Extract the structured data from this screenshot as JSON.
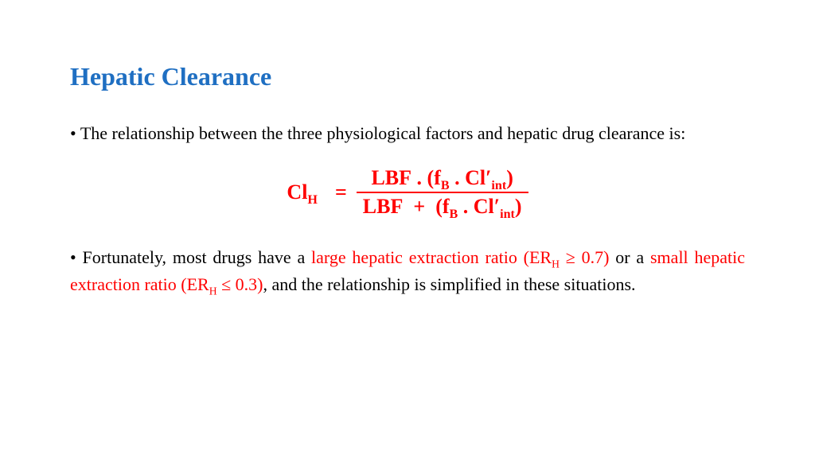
{
  "title": {
    "text": "Hepatic Clearance",
    "color": "#1f6fc2",
    "fontsize_pt": 24,
    "weight": "bold"
  },
  "body_text_color": "#000000",
  "highlight_color": "#ff0000",
  "background_color": "#ffffff",
  "font_family": "Times New Roman",
  "body_fontsize_pt": 16,
  "paragraph1": {
    "bullet": "•",
    "text": "The relationship between the three physiological factors and hepatic drug clearance is:"
  },
  "equation": {
    "lhs_base": "Cl",
    "lhs_sub": "H",
    "equals": "=",
    "numerator": {
      "t1": "LBF",
      "dot1": ".",
      "lparen": "(",
      "t2": "f",
      "t2_sub": "B",
      "dot2": ".",
      "t3": "Cl",
      "t3_prime": "′",
      "t3_sub": "int",
      "rparen": ")"
    },
    "denominator": {
      "t1": "LBF",
      "plus": "+",
      "lparen": "(",
      "t2": "f",
      "t2_sub": "B",
      "dot2": ".",
      "t3": "Cl",
      "t3_prime": "′",
      "t3_sub": "int",
      "rparen": ")"
    },
    "color": "#ff0000",
    "weight": "bold",
    "fontsize_pt": 20
  },
  "paragraph2": {
    "bullet": "•",
    "seg1": "Fortunately, most drugs have a ",
    "red1a": "large hepatic extraction ratio (ER",
    "red1_sub": "H",
    "red1b": " ≥ 0.7)",
    "seg2": " or a ",
    "red2a": "small hepatic extraction ratio (ER",
    "red2_sub": "H",
    "red2b": " ≤ 0.3)",
    "seg3": ", and the relationship is simplified in these situations."
  }
}
